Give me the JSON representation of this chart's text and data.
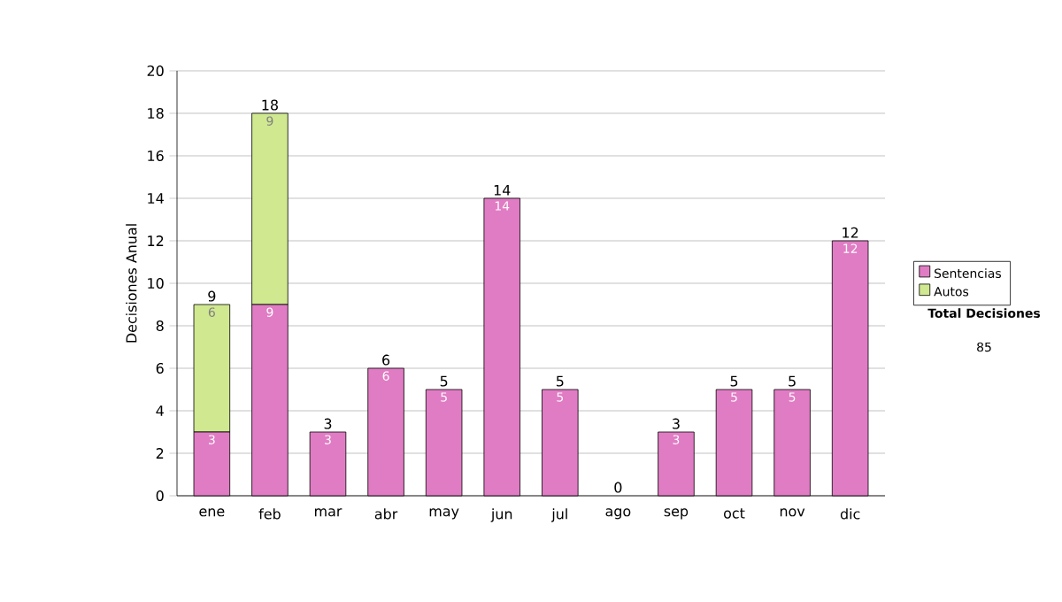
{
  "chart_data": {
    "type": "bar",
    "stacked": true,
    "ylabel": "Decisiones Anual",
    "categories": [
      "ene",
      "feb",
      "mar",
      "abr",
      "may",
      "jun",
      "jul",
      "ago",
      "sep",
      "oct",
      "nov",
      "dic"
    ],
    "series": [
      {
        "name": "Sentencias",
        "color": "#e07cc4",
        "values": [
          3,
          9,
          3,
          6,
          5,
          14,
          5,
          0,
          3,
          5,
          5,
          12
        ],
        "value_labels": [
          "3",
          "9",
          "3",
          "6",
          "5",
          "14",
          "5",
          null,
          "3",
          "5",
          "5",
          "12"
        ]
      },
      {
        "name": "Autos",
        "color": "#d0e890",
        "values": [
          6,
          9,
          0,
          0,
          0,
          0,
          0,
          0,
          0,
          0,
          0,
          0
        ],
        "value_labels": [
          "6",
          "9",
          null,
          null,
          null,
          null,
          null,
          null,
          null,
          null,
          null,
          null
        ]
      }
    ],
    "totals": [
      "9",
      "18",
      "3",
      "6",
      "5",
      "14",
      "5",
      "0",
      "3",
      "5",
      "5",
      "12"
    ],
    "ylim": [
      0,
      20
    ],
    "yticks": [
      0,
      2,
      4,
      6,
      8,
      10,
      12,
      14,
      16,
      18,
      20
    ],
    "grid": "y",
    "legend": "right",
    "annotations": [
      "Total Decisiones",
      "85"
    ]
  }
}
